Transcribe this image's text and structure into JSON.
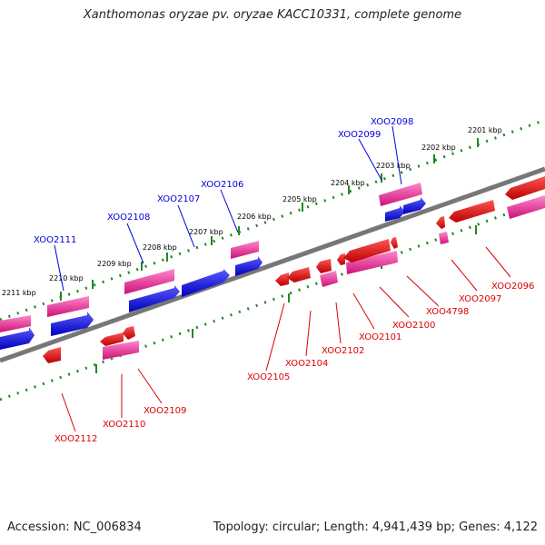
{
  "title": "Xanthomonas oryzae pv. oryzae KACC10331, complete genome",
  "footer": {
    "accession": "Accession: NC_006834",
    "summary": "Topology: circular; Length: 4,941,439 bp; Genes: 4,122"
  },
  "ruler_labels": [
    "2211 kbp",
    "2210 kbp",
    "2209 kbp",
    "2208 kbp",
    "2207 kbp",
    "2206 kbp",
    "2205 kbp",
    "2204 kbp",
    "2203 kbp",
    "2202 kbp",
    "2201 kbp"
  ],
  "forward_genes": [
    "XOO2111",
    "XOO2108",
    "XOO2107",
    "XOO2106",
    "XOO2099",
    "XOO2098"
  ],
  "reverse_genes": [
    "XOO2112",
    "XOO2110",
    "XOO2109",
    "XOO2105",
    "XOO2104",
    "XOO2102",
    "XOO2101",
    "XOO2100",
    "XOO4798",
    "XOO2097",
    "XOO2096"
  ],
  "colors": {
    "forward_gene": "#0000ee",
    "forward_cds": "#ee3399",
    "reverse_gene": "#ee0000",
    "reverse_cds": "#ee3399",
    "ruler_dots": "#228822",
    "backbone": "#777777"
  }
}
